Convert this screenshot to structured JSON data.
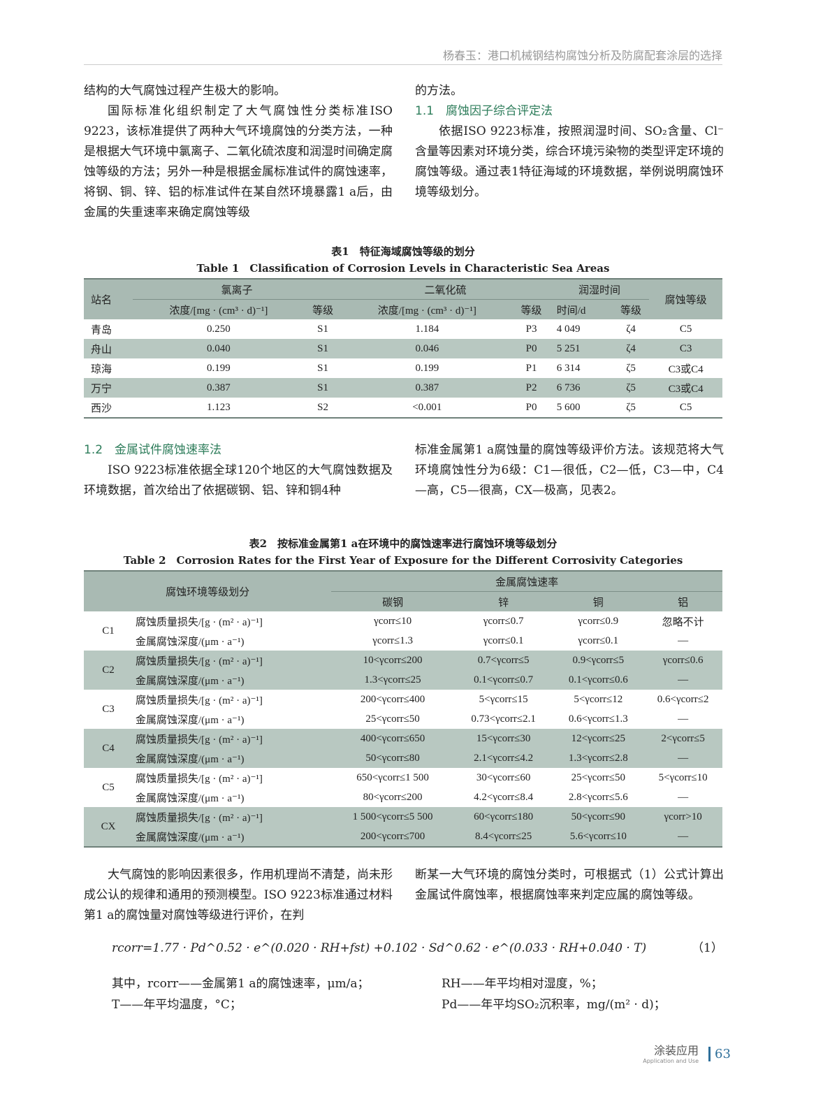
{
  "header": {
    "running_title": "杨春玉：港口机械钢结构腐蚀分析及防腐配套涂层的选择"
  },
  "left_col1": [
    "结构的大气腐蚀过程产生极大的影响。",
    "国际标准化组织制定了大气腐蚀性分类标准ISO 9223，该标准提供了两种大气环境腐蚀的分类方法，一种是根据大气环境中氯离子、二氧化硫浓度和润湿时间确定腐蚀等级的方法；另外一种是根据金属标准试件的腐蚀速率，将钢、铜、锌、铝的标准试件在某自然环境暴露1 a后，由金属的失重速率来确定腐蚀等级"
  ],
  "right_col1": {
    "p1": "的方法。",
    "heading": "1.1　腐蚀因子综合评定法",
    "p2": "依据ISO 9223标准，按照润湿时间、SO₂含量、Cl⁻含量等因素对环境分类，综合环境污染物的类型评定环境的腐蚀等级。通过表1特征海域的环境数据，举例说明腐蚀环境等级划分。"
  },
  "table1": {
    "caption_cn": "表1　特征海域腐蚀等级的划分",
    "caption_en": "Table 1　Classification of Corrosion Levels in Characteristic Sea Areas",
    "h_station": "站名",
    "h_cl": "氯离子",
    "h_so2": "二氧化硫",
    "h_wet": "润湿时间",
    "h_level": "腐蚀等级",
    "h_conc": "浓度/[mg · (cm³ · d)⁻¹]",
    "h_grade": "等级",
    "h_time": "时间/d",
    "rows": [
      [
        "青岛",
        "0.250",
        "S1",
        "1.184",
        "P3",
        "4 049",
        "ζ4",
        "C5"
      ],
      [
        "舟山",
        "0.040",
        "S1",
        "0.046",
        "P0",
        "5 251",
        "ζ4",
        "C3"
      ],
      [
        "琼海",
        "0.199",
        "S1",
        "0.199",
        "P1",
        "6 314",
        "ζ5",
        "C3或C4"
      ],
      [
        "万宁",
        "0.387",
        "S1",
        "0.387",
        "P2",
        "6 736",
        "ζ5",
        "C3或C4"
      ],
      [
        "西沙",
        "1.123",
        "S2",
        "<0.001",
        "P0",
        "5 600",
        "ζ5",
        "C5"
      ]
    ]
  },
  "sec12": {
    "heading": "1.2　金属试件腐蚀速率法",
    "p_left": "ISO 9223标准依据全球120个地区的大气腐蚀数据及环境数据，首次给出了依据碳钢、铝、锌和铜4种",
    "p_right": "标准金属第1 a腐蚀量的腐蚀等级评价方法。该规范将大气环境腐蚀性分为6级：C1—很低，C2—低，C3—中，C4—高，C5—很高，CX—极高，见表2。"
  },
  "table2": {
    "caption_cn": "表2　按标准金属第1 a在环境中的腐蚀速率进行腐蚀环境等级划分",
    "caption_en": "Table 2　Corrosion Rates for the First Year of Exposure for the Different Corrosivity Categories",
    "h_class": "腐蚀环境等级划分",
    "h_rate": "金属腐蚀速率",
    "h_metals": [
      "碳钢",
      "锌",
      "铜",
      "铝"
    ],
    "m_loss": "腐蚀质量损失/[g · (m² · a)⁻¹]",
    "m_depth": "金属腐蚀深度/(μm · a⁻¹)",
    "rows": [
      {
        "cat": "C1",
        "loss": [
          "γcorr≤10",
          "γcorr≤0.7",
          "γcorr≤0.9",
          "忽略不计"
        ],
        "depth": [
          "γcorr≤1.3",
          "γcorr≤0.1",
          "γcorr≤0.1",
          "—"
        ]
      },
      {
        "cat": "C2",
        "loss": [
          "10<γcorr≤200",
          "0.7<γcorr≤5",
          "0.9<γcorr≤5",
          "γcorr≤0.6"
        ],
        "depth": [
          "1.3<γcorr≤25",
          "0.1<γcorr≤0.7",
          "0.1<γcorr≤0.6",
          "—"
        ]
      },
      {
        "cat": "C3",
        "loss": [
          "200<γcorr≤400",
          "5<γcorr≤15",
          "5<γcorr≤12",
          "0.6<γcorr≤2"
        ],
        "depth": [
          "25<γcorr≤50",
          "0.73<γcorr≤2.1",
          "0.6<γcorr≤1.3",
          "—"
        ]
      },
      {
        "cat": "C4",
        "loss": [
          "400<γcorr≤650",
          "15<γcorr≤30",
          "12<γcorr≤25",
          "2<γcorr≤5"
        ],
        "depth": [
          "50<γcorr≤80",
          "2.1<γcorr≤4.2",
          "1.3<γcorr≤2.8",
          "—"
        ]
      },
      {
        "cat": "C5",
        "loss": [
          "650<γcorr≤1 500",
          "30<γcorr≤60",
          "25<γcorr≤50",
          "5<γcorr≤10"
        ],
        "depth": [
          "80<γcorr≤200",
          "4.2<γcorr≤8.4",
          "2.8<γcorr≤5.6",
          "—"
        ]
      },
      {
        "cat": "CX",
        "loss": [
          "1 500<γcorr≤5 500",
          "60<γcorr≤180",
          "50<γcorr≤90",
          "γcorr>10"
        ],
        "depth": [
          "200<γcorr≤700",
          "8.4<γcorr≤25",
          "5.6<γcorr≤10",
          "—"
        ]
      }
    ]
  },
  "body2": {
    "p_left": "大气腐蚀的影响因素很多，作用机理尚不清楚，尚未形成公认的规律和通用的预测模型。ISO 9223标准通过材料第1 a的腐蚀量对腐蚀等级进行评价，在判",
    "p_right": "断某一大气环境的腐蚀分类时，可根据式（1）公式计算出金属试件腐蚀率，根据腐蚀率来判定应属的腐蚀等级。"
  },
  "formula": {
    "text": "rcorr=1.77 · Pd^0.52 · e^(0.020 · RH+fst) +0.102 · Sd^0.62 · e^(0.033 · RH+0.040 · T)",
    "number": "（1）"
  },
  "where": [
    "其中，rcorr——金属第1 a的腐蚀速率，μm/a；",
    "RH——年平均相对湿度，%；",
    "T——年平均温度，°C；",
    "Pd——年平均SO₂沉积率，mg/(m² · d)；"
  ],
  "footer": {
    "journal": "涂装应用",
    "journal_en": "Application and Use",
    "page": "63"
  },
  "colors": {
    "heading": "#2e7d5b",
    "table_header": "#a9bab3",
    "table_stripe": "#b8c8c1"
  }
}
